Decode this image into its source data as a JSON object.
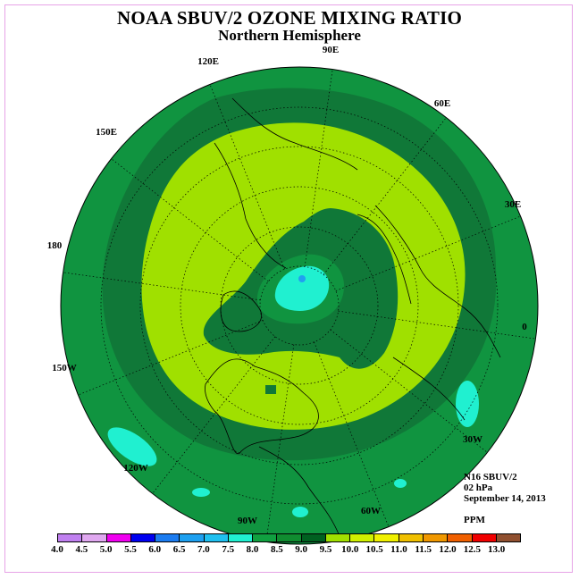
{
  "title": "NOAA SBUV/2 OZONE MIXING RATIO",
  "subtitle": "Northern Hemisphere",
  "longitude_labels": [
    "90E",
    "60E",
    "30E",
    "0",
    "30W",
    "60W",
    "90W",
    "120W",
    "150W",
    "180",
    "150E",
    "120E"
  ],
  "info": {
    "instrument": "N16 SBUV/2",
    "level": "02 hPa",
    "date": "September 14, 2013",
    "units": "PPM"
  },
  "legend": {
    "ticks": [
      "4.0",
      "4.5",
      "5.0",
      "5.5",
      "6.0",
      "6.5",
      "7.0",
      "7.5",
      "8.0",
      "8.5",
      "9.0",
      "9.5",
      "10.0",
      "10.5",
      "11.0",
      "11.5",
      "12.0",
      "12.5",
      "13.0"
    ],
    "colors": [
      "#c080f0",
      "#e0a8f0",
      "#f000f0",
      "#0000f0",
      "#1c7cf0",
      "#1ea0f0",
      "#20c0f0",
      "#20f0d0",
      "#10a040",
      "#108c30",
      "#006020",
      "#a0e000",
      "#d0f000",
      "#f0f000",
      "#f0c000",
      "#f09800",
      "#f06000",
      "#f00000",
      "#905030"
    ]
  },
  "map_colors": {
    "ring_green": "#109440",
    "dark_green": "#107838",
    "light_green": "#a0e000",
    "cyan": "#20f0d0",
    "blue": "#20a0f0"
  }
}
